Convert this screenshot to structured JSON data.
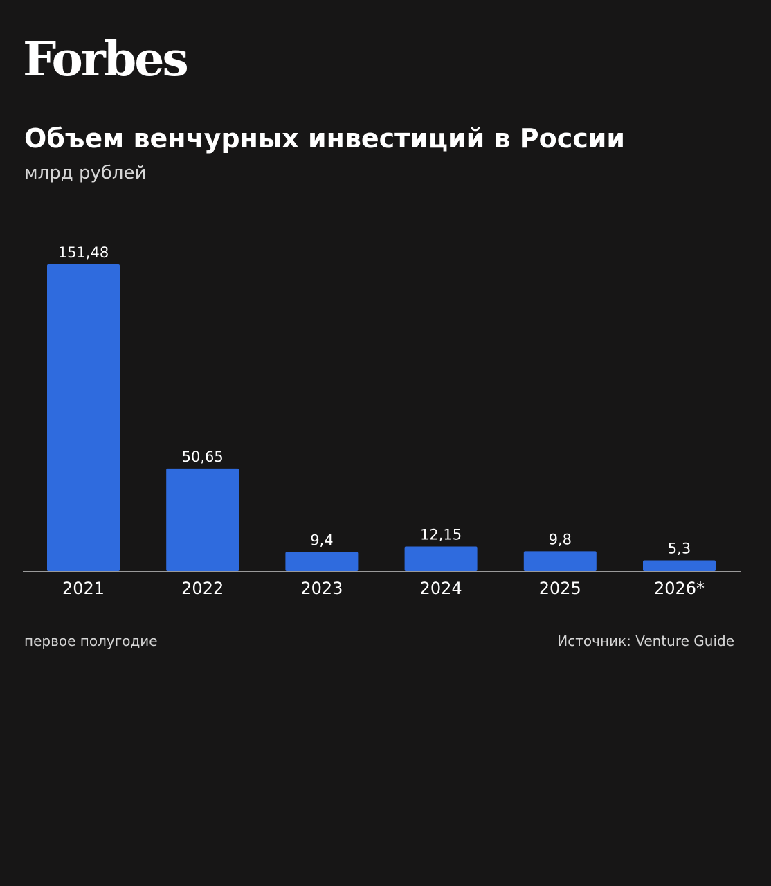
{
  "brand": {
    "name": "Forbes"
  },
  "chart_data": {
    "type": "bar",
    "title": "Объем венчурных инвестиций в России",
    "subtitle": "млрд рублей",
    "categories": [
      "2021",
      "2022",
      "2023",
      "2024",
      "2025",
      "2026*"
    ],
    "values": [
      151.48,
      50.65,
      9.4,
      12.15,
      9.8,
      5.3
    ],
    "value_labels": [
      "151,48",
      "50,65",
      "9,4",
      "12,15",
      "9,8",
      "5,3"
    ],
    "ylim": [
      0,
      151.48
    ],
    "grid": false,
    "legend": "none",
    "bar_color": "#2f6bde",
    "axis_color": "#9a9a9a"
  },
  "footnote": "первое полугодие",
  "source": "Источник: Venture Guide"
}
